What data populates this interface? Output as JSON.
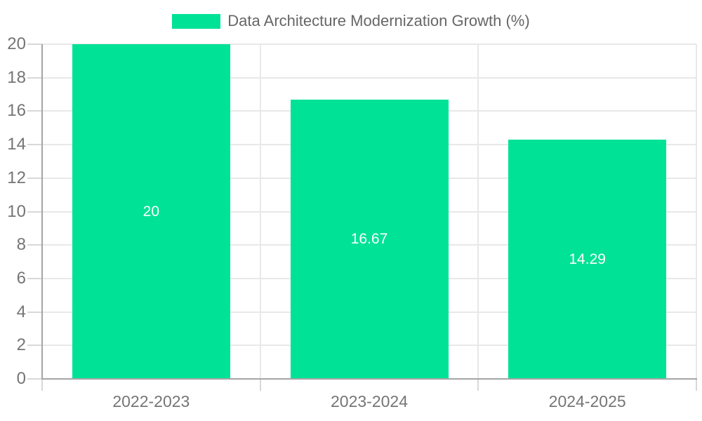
{
  "chart_data": {
    "type": "bar",
    "title": "Data Architecture Modernization Growth (%)",
    "categories": [
      "2022-2023",
      "2023-2024",
      "2024-2025"
    ],
    "values": [
      20,
      16.67,
      14.29
    ],
    "value_labels": [
      "20",
      "16.67",
      "14.29"
    ],
    "xlabel": "",
    "ylabel": "",
    "ylim": [
      0,
      20
    ],
    "yticks": [
      0,
      2,
      4,
      6,
      8,
      10,
      12,
      14,
      16,
      18,
      20
    ],
    "grid": true,
    "legend_position": "top",
    "colors": {
      "bar": "#00E296",
      "value_label": "#ffffff",
      "axis_line": "#a5a5a5",
      "gridline": "#e8e8e8",
      "tick_mark": "#d8d8d8",
      "tick_label": "#757575",
      "legend_text": "#666666",
      "background": "#ffffff"
    }
  }
}
